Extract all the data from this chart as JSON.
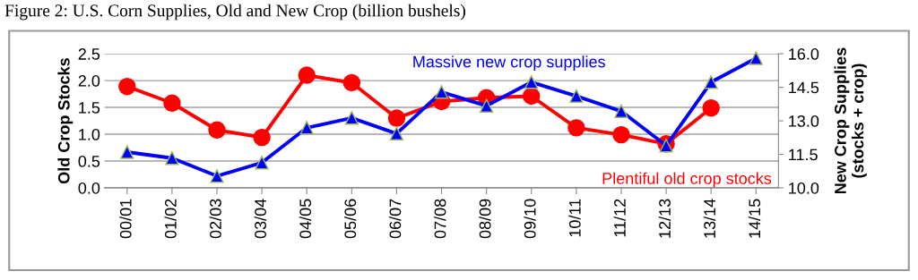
{
  "chart_data": {
    "type": "line",
    "title": "Figure 2: U.S. Corn Supplies, Old and New Crop (billion bushels)",
    "ylabel": "Old Crop Stocks",
    "y2label": "New Crop Supplies\n(stocks + crop)",
    "categories": [
      "00/01",
      "01/02",
      "02/03",
      "03/04",
      "04/05",
      "05/06",
      "06/07",
      "07/08",
      "08/09",
      "09/10",
      "10/11",
      "11/12",
      "12/13",
      "13/14",
      "14/15"
    ],
    "series": [
      {
        "color": "#ff0000",
        "marker": "circle",
        "values": [
          1.89,
          1.58,
          1.08,
          0.94,
          2.1,
          1.96,
          1.3,
          1.61,
          1.68,
          1.71,
          1.12,
          0.99,
          0.82,
          1.49,
          null
        ]
      },
      {
        "color": "#0000ff",
        "marker": "triangle",
        "axis": "y2",
        "values": [
          11.6,
          11.33,
          10.53,
          11.13,
          12.69,
          13.13,
          12.43,
          14.29,
          13.67,
          14.73,
          14.11,
          13.43,
          11.89,
          14.73,
          15.8
        ]
      }
    ],
    "ylim": [
      0,
      2.5
    ],
    "yticks": [
      {
        "value": 0,
        "label": "0.0"
      },
      {
        "value": 0.5,
        "label": "0.5"
      },
      {
        "value": 1,
        "label": "1.0"
      },
      {
        "value": 1.5,
        "label": "1.5"
      },
      {
        "value": 2,
        "label": "2.0"
      },
      {
        "value": 2.5,
        "label": "2.5"
      }
    ],
    "y2lim": [
      10,
      16
    ],
    "y2ticks": [
      {
        "value": 10,
        "label": "10.0"
      },
      {
        "value": 11.5,
        "label": "11.5"
      },
      {
        "value": 13,
        "label": "13.0"
      },
      {
        "value": 14.5,
        "label": "14.5"
      },
      {
        "value": 16,
        "label": "16.0"
      }
    ],
    "annotations": [
      "Massive new crop supplies",
      "Plentiful old crop stocks"
    ],
    "grid": "y",
    "legend": false
  }
}
